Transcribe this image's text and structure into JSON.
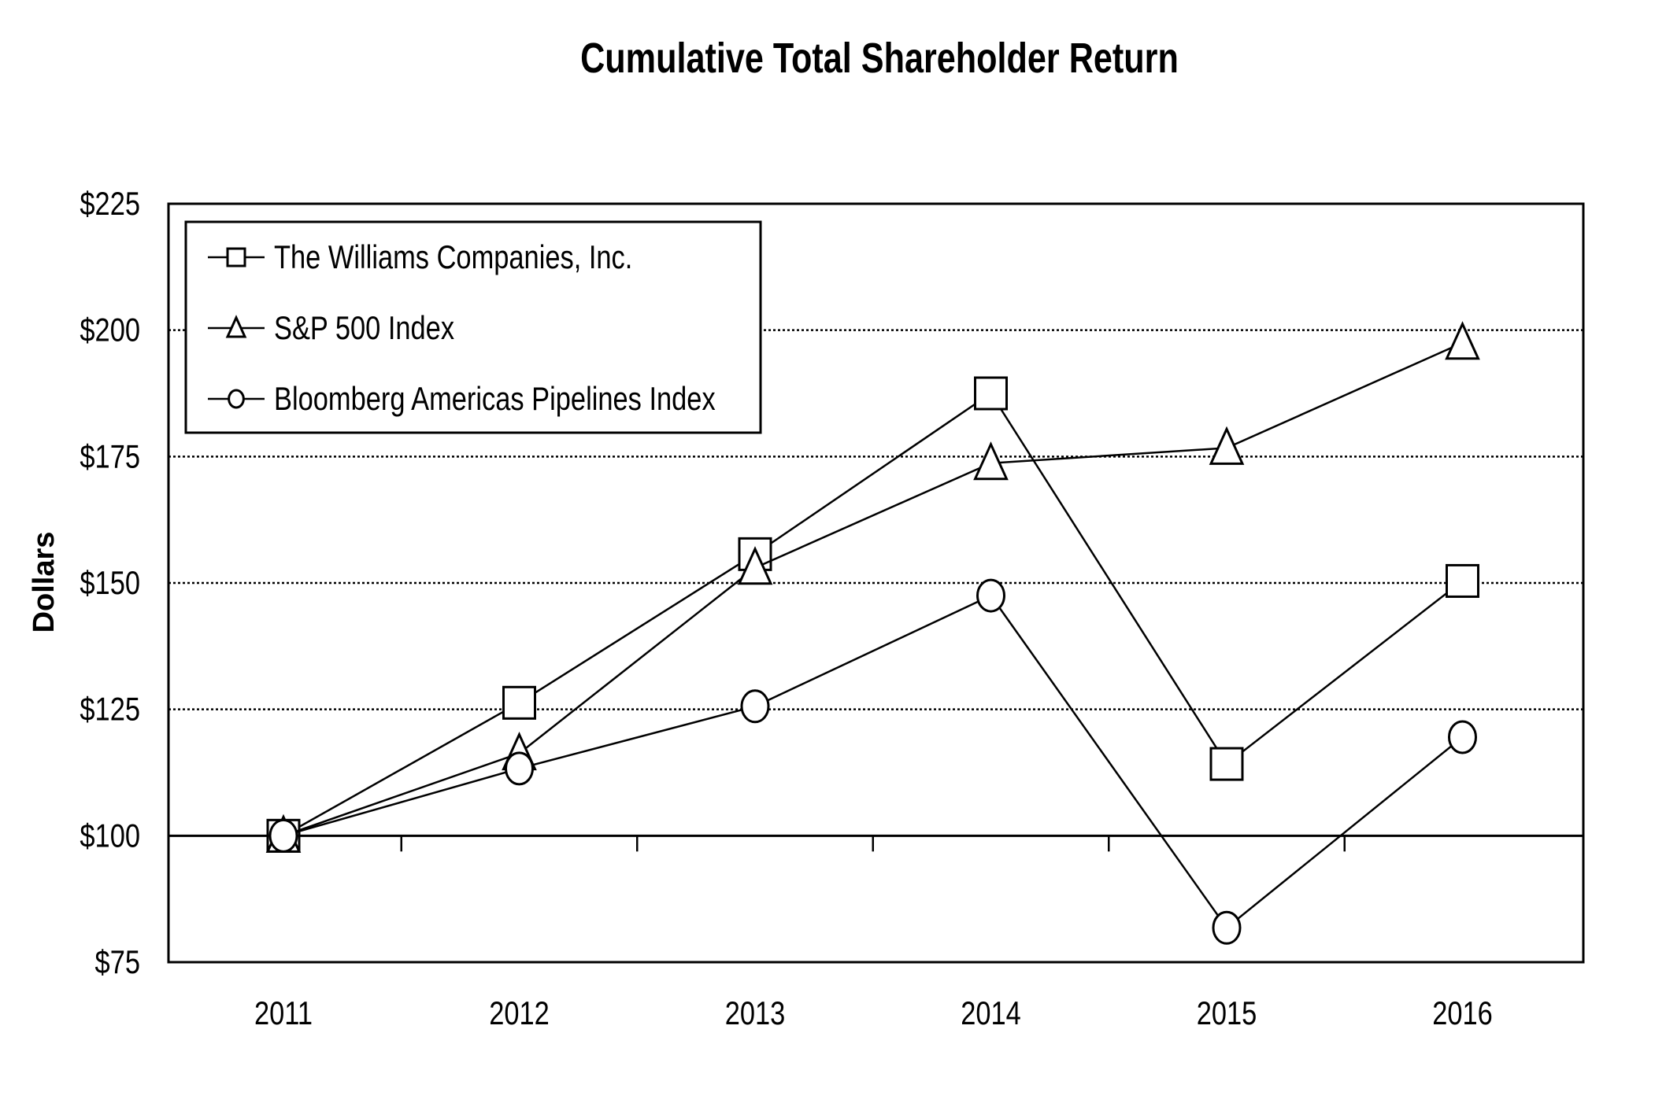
{
  "chart_data": {
    "type": "line",
    "title": "Cumulative  Total Shareholder Return",
    "xlabel": "",
    "ylabel": "Dollars",
    "categories": [
      "2011",
      "2012",
      "2013",
      "2014",
      "2015",
      "2016"
    ],
    "ylim": [
      75,
      225
    ],
    "yticks": [
      75,
      100,
      125,
      150,
      175,
      200,
      225
    ],
    "ytick_labels": [
      "$75",
      "$100",
      "$125",
      "$150",
      "$175",
      "$200",
      "$225"
    ],
    "grid": "dotted horizontal",
    "legend_position": "top-left",
    "series": [
      {
        "name": "The Williams Companies, Inc.",
        "marker": "square",
        "values": [
          100,
          126.3,
          155.7,
          187.5,
          114.2,
          150.4
        ]
      },
      {
        "name": "S&P 500 Index",
        "marker": "triangle",
        "values": [
          100,
          116.3,
          153.0,
          173.7,
          176.7,
          197.5
        ]
      },
      {
        "name": "Bloomberg Americas Pipelines Index",
        "marker": "circle",
        "values": [
          100,
          113.3,
          125.6,
          147.5,
          81.8,
          119.5
        ]
      }
    ],
    "colors": {
      "line": "#000000",
      "marker_fill": "#ffffff",
      "background": "#ffffff"
    }
  }
}
